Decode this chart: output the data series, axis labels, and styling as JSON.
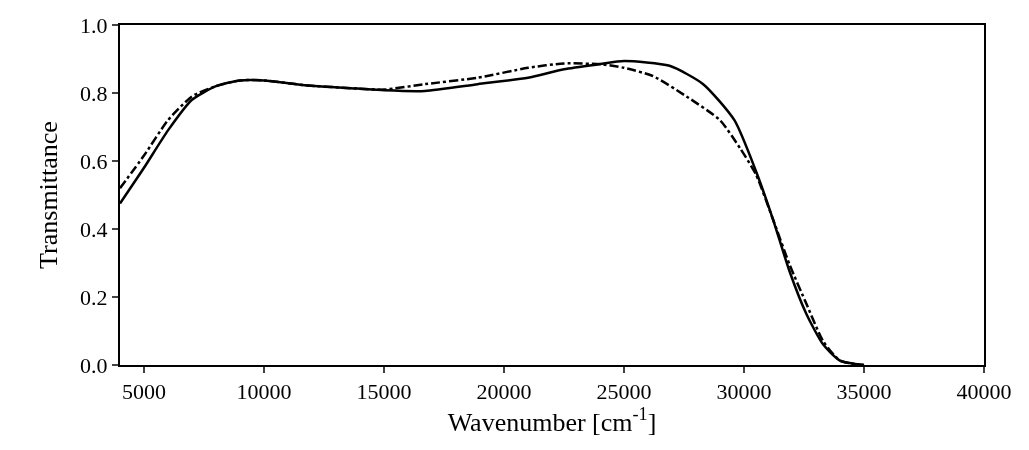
{
  "chart_data": {
    "type": "line",
    "xlabel": "Wavenumber [cm$^{-1}$]",
    "ylabel": "Transmittance",
    "xlim": [
      4000,
      40000
    ],
    "xticks": [
      5000,
      10000,
      15000,
      20000,
      25000,
      30000,
      35000,
      40000
    ],
    "ylim": [
      0,
      1
    ],
    "yticks": [
      {
        "value": 0,
        "label": "0.0"
      },
      0.2,
      0.4,
      0.6,
      0.8,
      {
        "value": 1,
        "label": "1.0"
      }
    ],
    "grid": false,
    "series": [
      {
        "color": "#000000",
        "line_style": "solid",
        "x": [
          4000,
          5000,
          6000,
          7000,
          8000,
          9000,
          10000,
          11700,
          13900,
          15000,
          16700,
          18900,
          21000,
          22500,
          24000,
          25000,
          26900,
          28300,
          29600,
          30500,
          31200,
          31900,
          32600,
          33300,
          34000,
          35000
        ],
        "values": [
          0.475,
          0.58,
          0.69,
          0.78,
          0.82,
          0.837,
          0.837,
          0.823,
          0.813,
          0.808,
          0.806,
          0.826,
          0.845,
          0.87,
          0.885,
          0.894,
          0.88,
          0.826,
          0.72,
          0.57,
          0.43,
          0.275,
          0.15,
          0.06,
          0.013,
          0
        ]
      },
      {
        "color": "#000000",
        "line_style": "dashed",
        "x": [
          4000,
          5000,
          6000,
          7000,
          8000,
          9000,
          10000,
          11700,
          13900,
          15000,
          16700,
          18900,
          21000,
          22500,
          24100,
          25000,
          26200,
          27600,
          29000,
          29850,
          30500,
          31200,
          31900,
          32600,
          33300,
          34000,
          35000
        ],
        "values": [
          0.52,
          0.616,
          0.72,
          0.79,
          0.82,
          0.837,
          0.837,
          0.823,
          0.813,
          0.81,
          0.826,
          0.845,
          0.874,
          0.887,
          0.884,
          0.874,
          0.85,
          0.79,
          0.72,
          0.636,
          0.56,
          0.43,
          0.295,
          0.18,
          0.07,
          0.013,
          0
        ]
      }
    ]
  }
}
